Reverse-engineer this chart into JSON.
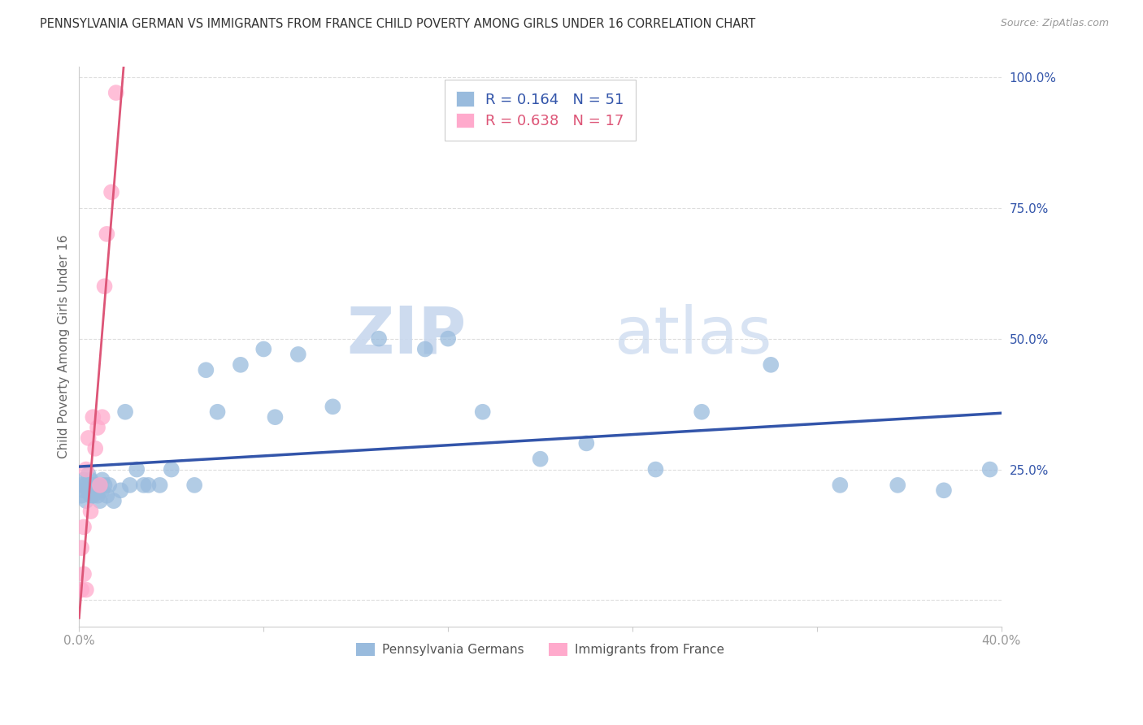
{
  "title": "PENNSYLVANIA GERMAN VS IMMIGRANTS FROM FRANCE CHILD POVERTY AMONG GIRLS UNDER 16 CORRELATION CHART",
  "source": "Source: ZipAtlas.com",
  "ylabel": "Child Poverty Among Girls Under 16",
  "legend_label1": "Pennsylvania Germans",
  "legend_label2": "Immigrants from France",
  "r1": 0.164,
  "n1": 51,
  "r2": 0.638,
  "n2": 17,
  "color_blue": "#99BBDD",
  "color_pink": "#FFAACC",
  "color_line_blue": "#3355AA",
  "color_line_pink": "#DD5577",
  "xlim": [
    0.0,
    0.4
  ],
  "ylim": [
    -0.05,
    1.02
  ],
  "blue_x": [
    0.001,
    0.001,
    0.002,
    0.002,
    0.003,
    0.003,
    0.004,
    0.004,
    0.005,
    0.005,
    0.006,
    0.006,
    0.007,
    0.007,
    0.008,
    0.009,
    0.01,
    0.01,
    0.011,
    0.012,
    0.013,
    0.015,
    0.018,
    0.02,
    0.022,
    0.025,
    0.028,
    0.03,
    0.035,
    0.04,
    0.05,
    0.055,
    0.06,
    0.07,
    0.08,
    0.085,
    0.095,
    0.11,
    0.13,
    0.15,
    0.16,
    0.175,
    0.2,
    0.22,
    0.25,
    0.27,
    0.3,
    0.33,
    0.355,
    0.375,
    0.395
  ],
  "blue_y": [
    0.2,
    0.22,
    0.21,
    0.23,
    0.19,
    0.22,
    0.21,
    0.24,
    0.2,
    0.23,
    0.22,
    0.2,
    0.21,
    0.22,
    0.2,
    0.19,
    0.21,
    0.23,
    0.22,
    0.2,
    0.22,
    0.19,
    0.21,
    0.36,
    0.22,
    0.25,
    0.22,
    0.22,
    0.22,
    0.25,
    0.22,
    0.44,
    0.36,
    0.45,
    0.48,
    0.35,
    0.47,
    0.37,
    0.5,
    0.48,
    0.5,
    0.36,
    0.27,
    0.3,
    0.25,
    0.36,
    0.45,
    0.22,
    0.22,
    0.21,
    0.25
  ],
  "pink_x": [
    0.001,
    0.001,
    0.002,
    0.002,
    0.003,
    0.003,
    0.004,
    0.005,
    0.006,
    0.007,
    0.008,
    0.009,
    0.01,
    0.011,
    0.012,
    0.014,
    0.016
  ],
  "pink_y": [
    0.02,
    0.1,
    0.05,
    0.14,
    0.02,
    0.25,
    0.31,
    0.17,
    0.35,
    0.29,
    0.33,
    0.22,
    0.35,
    0.6,
    0.7,
    0.78,
    0.97
  ],
  "yticks": [
    0.0,
    0.25,
    0.5,
    0.75,
    1.0
  ],
  "ytick_labels_right": [
    "",
    "25.0%",
    "50.0%",
    "75.0%",
    "100.0%"
  ],
  "xticks": [
    0.0,
    0.08,
    0.16,
    0.24,
    0.32,
    0.4
  ],
  "xtick_labels": [
    "0.0%",
    "",
    "",
    "",
    "",
    "40.0%"
  ],
  "watermark_zip": "ZIP",
  "watermark_atlas": "atlas",
  "background_color": "#FFFFFF",
  "grid_color": "#DDDDDD",
  "tick_color": "#999999"
}
